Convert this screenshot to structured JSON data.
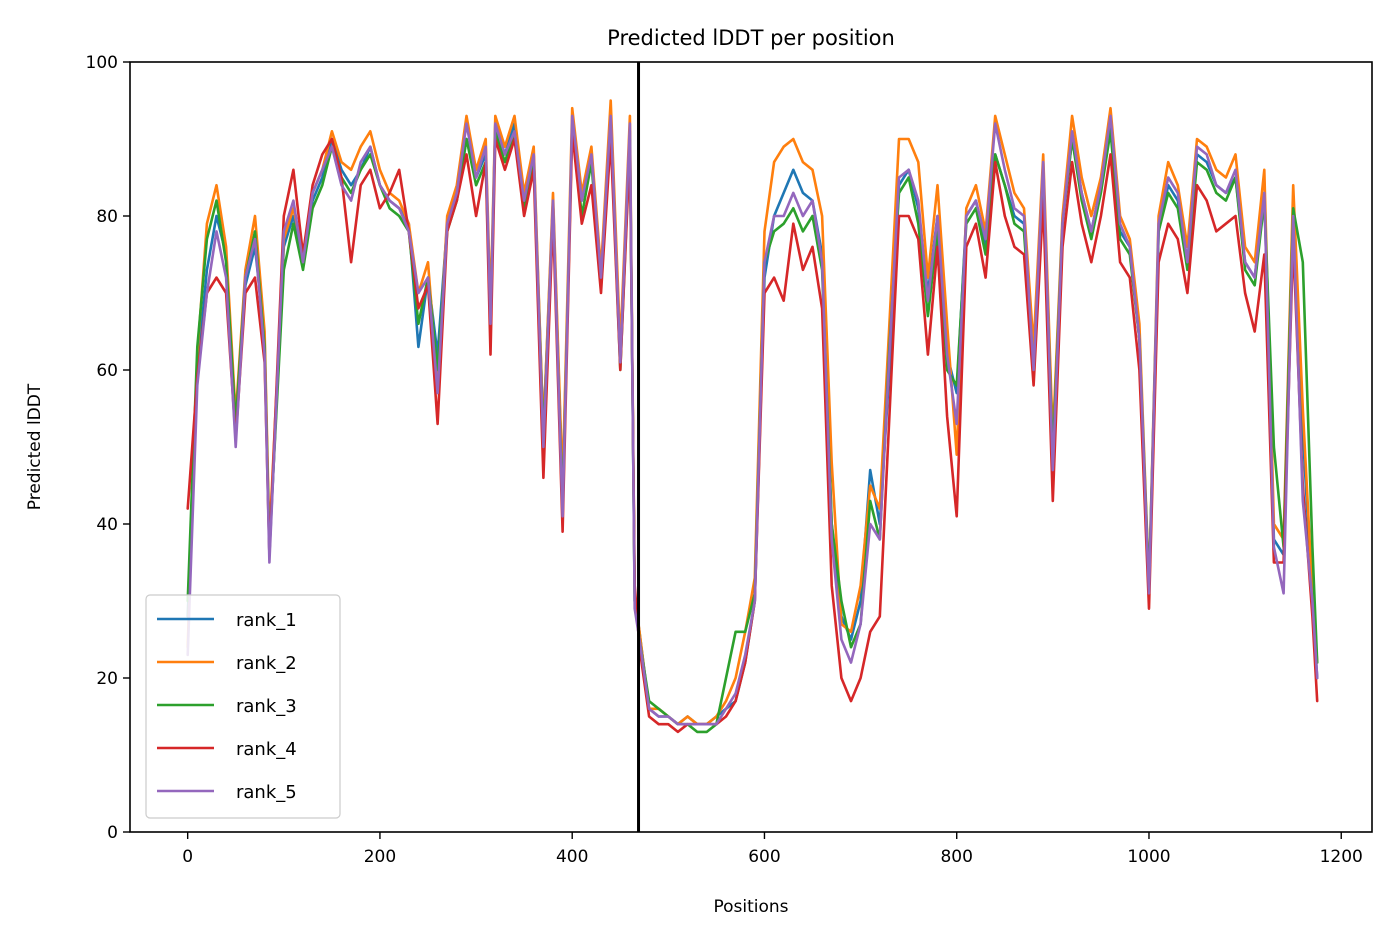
{
  "chart_data": {
    "type": "line",
    "title": "Predicted lDDT per position",
    "xlabel": "Positions",
    "ylabel": "Predicted lDDT",
    "xlim": [
      -60,
      1232
    ],
    "ylim": [
      0,
      100
    ],
    "xticks": [
      0,
      200,
      400,
      600,
      800,
      1000,
      1200
    ],
    "yticks": [
      0,
      20,
      40,
      60,
      80,
      100
    ],
    "xtick_labels": [
      "0",
      "200",
      "400",
      "600",
      "800",
      "1000",
      "1200"
    ],
    "ytick_labels": [
      "0",
      "20",
      "40",
      "60",
      "80",
      "100"
    ],
    "vline_x": 469,
    "vline_color": "#000000",
    "grid": false,
    "legend_position": "lower-left",
    "x": [
      0,
      10,
      20,
      30,
      40,
      50,
      60,
      70,
      80,
      85,
      100,
      110,
      120,
      130,
      140,
      150,
      160,
      170,
      180,
      190,
      200,
      210,
      220,
      230,
      240,
      250,
      260,
      270,
      280,
      290,
      300,
      310,
      315,
      320,
      330,
      340,
      350,
      360,
      370,
      380,
      390,
      400,
      410,
      420,
      430,
      440,
      450,
      460,
      465,
      470,
      480,
      490,
      500,
      510,
      520,
      530,
      540,
      550,
      560,
      570,
      580,
      590,
      600,
      610,
      620,
      630,
      640,
      650,
      660,
      670,
      680,
      690,
      700,
      710,
      720,
      730,
      740,
      750,
      760,
      770,
      780,
      790,
      800,
      810,
      820,
      830,
      840,
      850,
      860,
      870,
      880,
      890,
      900,
      910,
      920,
      930,
      940,
      950,
      960,
      970,
      980,
      990,
      1000,
      1010,
      1020,
      1030,
      1040,
      1050,
      1060,
      1070,
      1080,
      1090,
      1100,
      1110,
      1120,
      1130,
      1140,
      1150,
      1160,
      1170,
      1175
    ],
    "series": [
      {
        "name": "rank_1",
        "color": "#1f77b4",
        "values": [
          28,
          60,
          73,
          80,
          75,
          52,
          71,
          76,
          64,
          36,
          76,
          80,
          74,
          82,
          85,
          90,
          86,
          84,
          86,
          89,
          84,
          82,
          81,
          79,
          63,
          72,
          62,
          79,
          82,
          90,
          85,
          88,
          67,
          92,
          88,
          92,
          82,
          88,
          52,
          82,
          44,
          92,
          82,
          88,
          72,
          92,
          62,
          91,
          30,
          26,
          16,
          15,
          15,
          14,
          15,
          14,
          14,
          15,
          16,
          17,
          22,
          30,
          72,
          80,
          83,
          86,
          83,
          82,
          75,
          40,
          28,
          25,
          30,
          47,
          40,
          60,
          84,
          86,
          81,
          70,
          80,
          62,
          57,
          80,
          82,
          76,
          88,
          84,
          80,
          79,
          61,
          85,
          50,
          79,
          90,
          83,
          78,
          84,
          92,
          78,
          76,
          64,
          31,
          78,
          84,
          82,
          74,
          88,
          87,
          84,
          83,
          85,
          74,
          72,
          83,
          38,
          36,
          82,
          52,
          30,
          20
        ]
      },
      {
        "name": "rank_2",
        "color": "#ff7f0e",
        "values": [
          24,
          62,
          79,
          84,
          76,
          54,
          73,
          80,
          65,
          38,
          77,
          81,
          75,
          83,
          86,
          91,
          87,
          86,
          89,
          91,
          86,
          83,
          82,
          79,
          70,
          74,
          58,
          80,
          84,
          93,
          86,
          90,
          68,
          93,
          89,
          93,
          83,
          89,
          52,
          83,
          45,
          94,
          83,
          89,
          73,
          95,
          63,
          93,
          31,
          26,
          16,
          16,
          15,
          14,
          15,
          14,
          14,
          15,
          17,
          20,
          26,
          33,
          78,
          87,
          89,
          90,
          87,
          86,
          80,
          48,
          27,
          26,
          32,
          45,
          42,
          66,
          90,
          90,
          87,
          72,
          84,
          66,
          49,
          81,
          84,
          78,
          93,
          88,
          83,
          81,
          63,
          88,
          51,
          80,
          93,
          85,
          80,
          85,
          94,
          80,
          77,
          66,
          32,
          80,
          87,
          84,
          76,
          90,
          89,
          86,
          85,
          88,
          76,
          74,
          86,
          40,
          38,
          84,
          55,
          31,
          22
        ]
      },
      {
        "name": "rank_3",
        "color": "#2ca02c",
        "values": [
          30,
          63,
          77,
          82,
          74,
          53,
          72,
          78,
          63,
          37,
          73,
          79,
          73,
          81,
          84,
          89,
          85,
          83,
          86,
          88,
          84,
          81,
          80,
          78,
          66,
          72,
          60,
          78,
          82,
          90,
          84,
          87,
          66,
          91,
          87,
          91,
          81,
          87,
          51,
          81,
          42,
          92,
          80,
          87,
          71,
          92,
          60,
          90,
          30,
          25,
          17,
          16,
          15,
          14,
          14,
          13,
          13,
          14,
          20,
          26,
          26,
          31,
          74,
          78,
          79,
          81,
          78,
          80,
          73,
          40,
          30,
          24,
          27,
          43,
          38,
          63,
          83,
          85,
          79,
          67,
          78,
          60,
          58,
          79,
          81,
          75,
          88,
          84,
          79,
          78,
          60,
          85,
          49,
          79,
          90,
          82,
          77,
          83,
          91,
          77,
          75,
          64,
          32,
          78,
          83,
          81,
          73,
          87,
          86,
          83,
          82,
          85,
          73,
          71,
          82,
          50,
          37,
          81,
          74,
          37,
          22
        ]
      },
      {
        "name": "rank_4",
        "color": "#d62728",
        "values": [
          42,
          59,
          70,
          72,
          70,
          51,
          70,
          72,
          61,
          36,
          80,
          86,
          75,
          84,
          88,
          90,
          85,
          74,
          84,
          86,
          81,
          83,
          86,
          78,
          68,
          71,
          53,
          78,
          82,
          88,
          80,
          87,
          62,
          90,
          86,
          90,
          80,
          86,
          46,
          80,
          39,
          91,
          79,
          84,
          70,
          90,
          60,
          89,
          32,
          24,
          15,
          14,
          14,
          13,
          14,
          14,
          14,
          14,
          15,
          17,
          22,
          30,
          70,
          72,
          69,
          79,
          73,
          76,
          68,
          32,
          20,
          17,
          20,
          26,
          28,
          54,
          80,
          80,
          77,
          62,
          76,
          54,
          41,
          76,
          79,
          72,
          87,
          80,
          76,
          75,
          58,
          82,
          43,
          76,
          87,
          79,
          74,
          80,
          88,
          74,
          72,
          60,
          29,
          74,
          79,
          77,
          70,
          84,
          82,
          78,
          79,
          80,
          70,
          65,
          75,
          35,
          35,
          77,
          45,
          28,
          17
        ]
      },
      {
        "name": "rank_5",
        "color": "#9467bd",
        "values": [
          23,
          58,
          70,
          78,
          72,
          50,
          72,
          77,
          62,
          35,
          78,
          82,
          74,
          83,
          86,
          89,
          84,
          82,
          87,
          89,
          84,
          82,
          81,
          78,
          70,
          72,
          57,
          79,
          83,
          92,
          85,
          89,
          66,
          92,
          88,
          91,
          82,
          88,
          50,
          82,
          41,
          93,
          82,
          88,
          72,
          93,
          61,
          92,
          29,
          25,
          16,
          15,
          15,
          14,
          14,
          14,
          14,
          14,
          16,
          18,
          23,
          30,
          74,
          80,
          80,
          83,
          80,
          82,
          74,
          38,
          25,
          22,
          27,
          40,
          38,
          62,
          85,
          86,
          82,
          69,
          80,
          62,
          53,
          80,
          82,
          77,
          92,
          86,
          81,
          80,
          60,
          87,
          47,
          79,
          91,
          83,
          78,
          84,
          93,
          79,
          76,
          64,
          31,
          79,
          85,
          83,
          74,
          89,
          88,
          84,
          83,
          86,
          74,
          72,
          83,
          37,
          31,
          80,
          43,
          30,
          20
        ]
      }
    ]
  }
}
